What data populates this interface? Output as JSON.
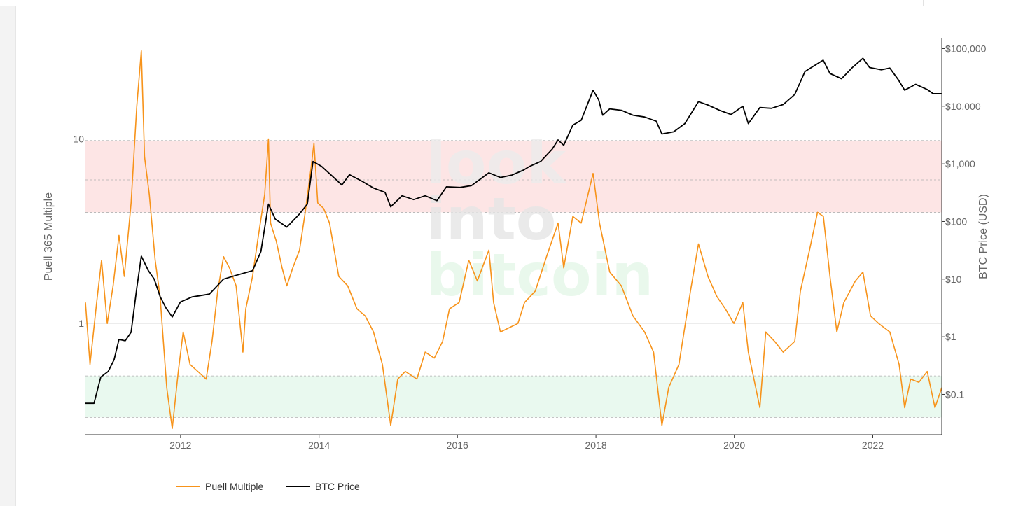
{
  "watermark": {
    "line1": "look",
    "line2": "into",
    "line3": "bitcoin"
  },
  "legend": {
    "puell": "Puell Multiple",
    "btc": "BTC Price"
  },
  "colors": {
    "puell": "#f7931a",
    "btc": "#000000",
    "red_band": "#fde5e5",
    "green_band": "#e9f9ef",
    "band_line": "#b0b0b0",
    "axis_text": "#666666"
  },
  "chart_data": {
    "type": "line",
    "title": "",
    "x_axis": {
      "type": "date",
      "range": [
        "2010-08-17",
        "2022-12-31"
      ],
      "tick_labels": [
        "2012",
        "2014",
        "2016",
        "2018",
        "2020",
        "2022"
      ]
    },
    "y_left": {
      "label": "Puell 365 Multiple",
      "scale": "log",
      "range": [
        0.25,
        35
      ],
      "tick_labels": [
        "1",
        "10"
      ]
    },
    "y_right": {
      "label": "BTC Price (USD)",
      "scale": "log",
      "range": [
        0.02,
        150000
      ],
      "tick_labels": [
        "$0.1",
        "$1",
        "$10",
        "$100",
        "$1,000",
        "$10,000",
        "$100,000"
      ]
    },
    "bands": [
      {
        "name": "red",
        "from": 4.0,
        "to": 9.8,
        "mid_line": 6.0
      },
      {
        "name": "green",
        "from": 0.31,
        "to": 0.52,
        "mid_line": 0.42
      }
    ],
    "legend_position": "bottom-left",
    "series": [
      {
        "name": "Puell Multiple",
        "axis": "left",
        "points": [
          [
            "2010-08-17",
            1.3
          ],
          [
            "2010-09-10",
            0.6
          ],
          [
            "2010-10-15",
            1.3
          ],
          [
            "2010-11-10",
            2.2
          ],
          [
            "2010-12-10",
            1.0
          ],
          [
            "2011-01-10",
            1.6
          ],
          [
            "2011-02-10",
            3.0
          ],
          [
            "2011-03-10",
            1.8
          ],
          [
            "2011-04-15",
            4.5
          ],
          [
            "2011-05-15",
            15
          ],
          [
            "2011-06-08",
            30
          ],
          [
            "2011-06-25",
            8
          ],
          [
            "2011-07-20",
            5
          ],
          [
            "2011-08-20",
            2.2
          ],
          [
            "2011-09-15",
            1.4
          ],
          [
            "2011-10-20",
            0.45
          ],
          [
            "2011-11-18",
            0.27
          ],
          [
            "2011-12-20",
            0.55
          ],
          [
            "2012-01-15",
            0.9
          ],
          [
            "2012-02-20",
            0.6
          ],
          [
            "2012-04-01",
            0.55
          ],
          [
            "2012-05-15",
            0.5
          ],
          [
            "2012-06-15",
            0.8
          ],
          [
            "2012-07-15",
            1.5
          ],
          [
            "2012-08-15",
            2.3
          ],
          [
            "2012-09-15",
            2.0
          ],
          [
            "2012-10-20",
            1.6
          ],
          [
            "2012-11-25",
            0.7
          ],
          [
            "2012-12-10",
            1.2
          ],
          [
            "2013-01-15",
            1.8
          ],
          [
            "2013-02-15",
            3.0
          ],
          [
            "2013-03-20",
            5.0
          ],
          [
            "2013-04-09",
            10
          ],
          [
            "2013-04-20",
            3.5
          ],
          [
            "2013-05-20",
            2.8
          ],
          [
            "2013-06-20",
            2.0
          ],
          [
            "2013-07-15",
            1.6
          ],
          [
            "2013-08-15",
            2.0
          ],
          [
            "2013-09-20",
            2.5
          ],
          [
            "2013-10-20",
            4.0
          ],
          [
            "2013-11-20",
            7.0
          ],
          [
            "2013-12-05",
            9.5
          ],
          [
            "2013-12-25",
            4.5
          ],
          [
            "2014-01-25",
            4.2
          ],
          [
            "2014-02-25",
            3.5
          ],
          [
            "2014-04-15",
            1.8
          ],
          [
            "2014-06-01",
            1.6
          ],
          [
            "2014-07-20",
            1.2
          ],
          [
            "2014-09-01",
            1.1
          ],
          [
            "2014-10-15",
            0.9
          ],
          [
            "2014-12-01",
            0.6
          ],
          [
            "2015-01-14",
            0.28
          ],
          [
            "2015-02-20",
            0.5
          ],
          [
            "2015-04-01",
            0.55
          ],
          [
            "2015-06-01",
            0.5
          ],
          [
            "2015-07-15",
            0.7
          ],
          [
            "2015-09-01",
            0.65
          ],
          [
            "2015-10-15",
            0.8
          ],
          [
            "2015-11-20",
            1.2
          ],
          [
            "2016-01-10",
            1.3
          ],
          [
            "2016-03-01",
            2.2
          ],
          [
            "2016-04-15",
            1.7
          ],
          [
            "2016-06-15",
            2.5
          ],
          [
            "2016-07-10",
            1.3
          ],
          [
            "2016-08-15",
            0.9
          ],
          [
            "2016-10-01",
            0.95
          ],
          [
            "2016-11-15",
            1.0
          ],
          [
            "2016-12-20",
            1.3
          ],
          [
            "2017-02-15",
            1.5
          ],
          [
            "2017-04-15",
            2.3
          ],
          [
            "2017-06-15",
            3.5
          ],
          [
            "2017-07-15",
            2.0
          ],
          [
            "2017-09-01",
            3.8
          ],
          [
            "2017-10-15",
            3.5
          ],
          [
            "2017-12-17",
            6.5
          ],
          [
            "2018-01-20",
            3.5
          ],
          [
            "2018-03-15",
            1.9
          ],
          [
            "2018-05-15",
            1.6
          ],
          [
            "2018-07-15",
            1.1
          ],
          [
            "2018-09-15",
            0.9
          ],
          [
            "2018-11-01",
            0.7
          ],
          [
            "2018-12-15",
            0.28
          ],
          [
            "2019-01-20",
            0.45
          ],
          [
            "2019-03-15",
            0.6
          ],
          [
            "2019-05-15",
            1.5
          ],
          [
            "2019-06-26",
            2.7
          ],
          [
            "2019-08-15",
            1.8
          ],
          [
            "2019-10-01",
            1.4
          ],
          [
            "2019-11-15",
            1.2
          ],
          [
            "2019-12-30",
            1.0
          ],
          [
            "2020-02-15",
            1.3
          ],
          [
            "2020-03-15",
            0.7
          ],
          [
            "2020-05-15",
            0.35
          ],
          [
            "2020-06-15",
            0.9
          ],
          [
            "2020-08-01",
            0.8
          ],
          [
            "2020-09-15",
            0.7
          ],
          [
            "2020-11-15",
            0.8
          ],
          [
            "2020-12-15",
            1.5
          ],
          [
            "2021-02-01",
            2.5
          ],
          [
            "2021-03-15",
            4.0
          ],
          [
            "2021-04-15",
            3.8
          ],
          [
            "2021-05-20",
            1.8
          ],
          [
            "2021-06-25",
            0.9
          ],
          [
            "2021-08-01",
            1.3
          ],
          [
            "2021-10-01",
            1.7
          ],
          [
            "2021-11-10",
            1.9
          ],
          [
            "2021-12-20",
            1.1
          ],
          [
            "2022-02-01",
            1.0
          ],
          [
            "2022-04-01",
            0.9
          ],
          [
            "2022-05-20",
            0.6
          ],
          [
            "2022-06-18",
            0.35
          ],
          [
            "2022-07-20",
            0.5
          ],
          [
            "2022-09-01",
            0.48
          ],
          [
            "2022-10-15",
            0.55
          ],
          [
            "2022-11-25",
            0.35
          ],
          [
            "2022-12-31",
            0.45
          ]
        ]
      },
      {
        "name": "BTC Price",
        "axis": "right",
        "points": [
          [
            "2010-08-17",
            0.07
          ],
          [
            "2010-10-01",
            0.07
          ],
          [
            "2010-11-06",
            0.2
          ],
          [
            "2010-12-15",
            0.25
          ],
          [
            "2011-01-15",
            0.4
          ],
          [
            "2011-02-10",
            0.9
          ],
          [
            "2011-03-15",
            0.85
          ],
          [
            "2011-04-15",
            1.2
          ],
          [
            "2011-05-15",
            7
          ],
          [
            "2011-06-08",
            25
          ],
          [
            "2011-07-15",
            14
          ],
          [
            "2011-08-15",
            10
          ],
          [
            "2011-09-15",
            5
          ],
          [
            "2011-10-15",
            3.2
          ],
          [
            "2011-11-18",
            2.2
          ],
          [
            "2011-12-31",
            4
          ],
          [
            "2012-03-01",
            4.9
          ],
          [
            "2012-06-01",
            5.5
          ],
          [
            "2012-08-15",
            10
          ],
          [
            "2012-10-15",
            11.5
          ],
          [
            "2013-01-15",
            14
          ],
          [
            "2013-02-28",
            30
          ],
          [
            "2013-04-09",
            200
          ],
          [
            "2013-05-15",
            110
          ],
          [
            "2013-07-15",
            80
          ],
          [
            "2013-09-15",
            130
          ],
          [
            "2013-10-31",
            200
          ],
          [
            "2013-11-30",
            1100
          ],
          [
            "2014-01-15",
            900
          ],
          [
            "2014-03-15",
            600
          ],
          [
            "2014-05-01",
            430
          ],
          [
            "2014-06-10",
            650
          ],
          [
            "2014-08-15",
            500
          ],
          [
            "2014-10-15",
            380
          ],
          [
            "2014-12-15",
            320
          ],
          [
            "2015-01-14",
            180
          ],
          [
            "2015-03-15",
            280
          ],
          [
            "2015-05-15",
            240
          ],
          [
            "2015-07-15",
            280
          ],
          [
            "2015-09-15",
            230
          ],
          [
            "2015-11-04",
            400
          ],
          [
            "2016-01-15",
            390
          ],
          [
            "2016-03-15",
            420
          ],
          [
            "2016-06-15",
            700
          ],
          [
            "2016-08-15",
            580
          ],
          [
            "2016-10-15",
            640
          ],
          [
            "2016-12-15",
            780
          ],
          [
            "2017-01-15",
            900
          ],
          [
            "2017-03-15",
            1100
          ],
          [
            "2017-05-15",
            1800
          ],
          [
            "2017-06-15",
            2600
          ],
          [
            "2017-07-15",
            2100
          ],
          [
            "2017-09-01",
            4700
          ],
          [
            "2017-10-15",
            5700
          ],
          [
            "2017-12-17",
            19000
          ],
          [
            "2018-01-15",
            13000
          ],
          [
            "2018-02-06",
            7000
          ],
          [
            "2018-03-15",
            9000
          ],
          [
            "2018-05-15",
            8500
          ],
          [
            "2018-07-15",
            7000
          ],
          [
            "2018-09-15",
            6500
          ],
          [
            "2018-11-15",
            5500
          ],
          [
            "2018-12-15",
            3300
          ],
          [
            "2019-02-15",
            3600
          ],
          [
            "2019-04-15",
            5000
          ],
          [
            "2019-06-26",
            12000
          ],
          [
            "2019-08-15",
            10500
          ],
          [
            "2019-10-15",
            8500
          ],
          [
            "2019-12-15",
            7200
          ],
          [
            "2020-02-15",
            10000
          ],
          [
            "2020-03-15",
            5000
          ],
          [
            "2020-05-15",
            9500
          ],
          [
            "2020-07-15",
            9200
          ],
          [
            "2020-09-15",
            10700
          ],
          [
            "2020-11-15",
            16000
          ],
          [
            "2021-01-08",
            40000
          ],
          [
            "2021-02-15",
            48000
          ],
          [
            "2021-04-14",
            63000
          ],
          [
            "2021-05-20",
            37000
          ],
          [
            "2021-07-20",
            30000
          ],
          [
            "2021-09-15",
            47000
          ],
          [
            "2021-11-10",
            68000
          ],
          [
            "2021-12-15",
            47000
          ],
          [
            "2022-02-15",
            43000
          ],
          [
            "2022-04-01",
            46000
          ],
          [
            "2022-05-15",
            29000
          ],
          [
            "2022-06-18",
            19000
          ],
          [
            "2022-08-15",
            24000
          ],
          [
            "2022-10-15",
            19500
          ],
          [
            "2022-11-15",
            16500
          ],
          [
            "2022-12-31",
            16500
          ]
        ]
      }
    ]
  }
}
